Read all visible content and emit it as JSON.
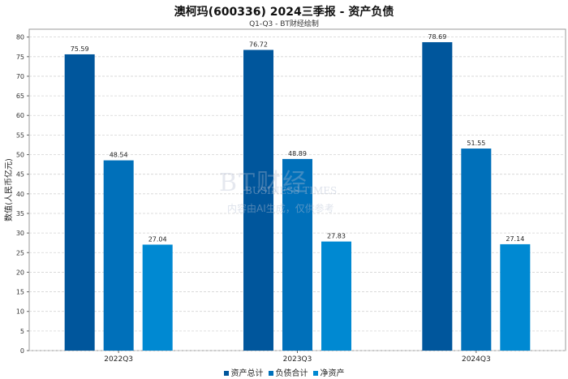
{
  "chart_data": {
    "type": "bar",
    "title": "澳柯玛(600336) 2024三季报 - 资产负债",
    "subtitle": "Q1-Q3 - BT财经绘制",
    "ylabel": "数值(人民币亿元)",
    "xlabel": "",
    "categories": [
      "2022Q3",
      "2023Q3",
      "2024Q3"
    ],
    "series": [
      {
        "name": "资产总计",
        "color": "#00569c",
        "values": [
          75.59,
          76.72,
          78.69
        ]
      },
      {
        "name": "负债合计",
        "color": "#0070ba",
        "values": [
          48.54,
          48.89,
          51.55
        ]
      },
      {
        "name": "净资产",
        "color": "#0089d2",
        "values": [
          27.04,
          27.83,
          27.14
        ]
      }
    ],
    "ylim": [
      0,
      82
    ],
    "yticks": [
      0,
      5,
      10,
      15,
      20,
      25,
      30,
      35,
      40,
      45,
      50,
      55,
      60,
      65,
      70,
      75,
      80
    ],
    "grid": true,
    "legend_position": "bottom-center"
  },
  "watermark": {
    "brand": "BT财经",
    "brand_en": "BUSINESS TIMES",
    "note": "内容由AI生成，仅供参考"
  }
}
